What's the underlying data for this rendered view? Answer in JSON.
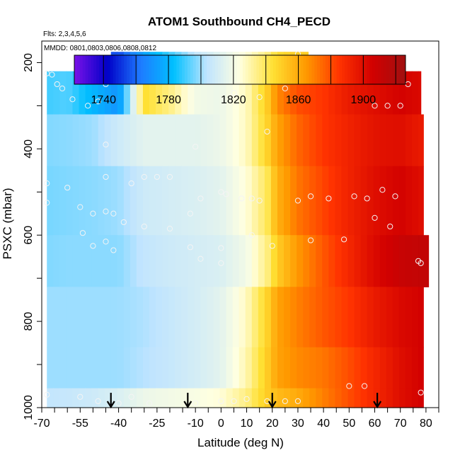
{
  "chart_data": {
    "type": "heatmap",
    "title": "ATOM1 Southbound CH4_PECD",
    "flights_note": "Flts: 2,3,4,5,6",
    "dates_note": "MMDD: 0801,0803,0806,0808,0812",
    "xlabel": "Latitude (deg N)",
    "ylabel": "PSXC (mbar)",
    "xlim": [
      -70,
      85
    ],
    "ylim": [
      1000,
      150
    ],
    "x_ticks": [
      -70,
      -55,
      -40,
      -25,
      -10,
      0,
      10,
      20,
      30,
      40,
      50,
      60,
      70,
      80
    ],
    "y_ticks": [
      200,
      400,
      600,
      800,
      1000
    ],
    "colorbar": {
      "range": [
        1722,
        1926
      ],
      "tick_values": [
        1740,
        1780,
        1820,
        1860,
        1900
      ],
      "tick_labels": [
        "1740",
        "1780",
        "1820",
        "1860",
        "1900"
      ],
      "boundaries": [
        1740,
        1760,
        1780,
        1800,
        1820,
        1840,
        1860,
        1880,
        1900,
        1920
      ],
      "colors": [
        "#7a12e8",
        "#0000c8",
        "#1e7bff",
        "#00c0ff",
        "#bfe4ff",
        "#ffffe0",
        "#ffe033",
        "#ff9900",
        "#ff3300",
        "#d20000",
        "#a01010"
      ]
    },
    "field": {
      "lat_nodes": [
        -68,
        -60,
        -50,
        -40,
        -30,
        -20,
        -10,
        0,
        10,
        18,
        22,
        30,
        40,
        50,
        60,
        70,
        78
      ],
      "rows": [
        {
          "p_top": 175,
          "p_bot": 220,
          "lat_min": -43,
          "lat_max": 34,
          "values": [
            1760,
            1760,
            1760,
            1755,
            1775,
            1790,
            1805,
            1815,
            1825,
            1835,
            1845,
            1850,
            1850,
            1850,
            1850,
            1850,
            1850
          ]
        },
        {
          "p_top": 220,
          "p_bot": 320,
          "lat_min": -68,
          "lat_max": 78,
          "values": [
            1790,
            1792,
            1780,
            1770,
            1845,
            1835,
            1820,
            1818,
            1828,
            1850,
            1868,
            1880,
            1885,
            1895,
            1900,
            1905,
            1902
          ]
        },
        {
          "p_top": 320,
          "p_bot": 440,
          "lat_min": -68,
          "lat_max": 79,
          "values": [
            1797,
            1798,
            1800,
            1808,
            1815,
            1815,
            1815,
            1818,
            1828,
            1848,
            1862,
            1875,
            1885,
            1892,
            1898,
            1900,
            1895
          ]
        },
        {
          "p_top": 440,
          "p_bot": 600,
          "lat_min": -68,
          "lat_max": 79,
          "values": [
            1796,
            1797,
            1798,
            1800,
            1808,
            1810,
            1812,
            1815,
            1825,
            1840,
            1858,
            1872,
            1882,
            1892,
            1900,
            1905,
            1900
          ]
        },
        {
          "p_top": 600,
          "p_bot": 720,
          "lat_min": -68,
          "lat_max": 81,
          "values": [
            1797,
            1798,
            1798,
            1798,
            1805,
            1808,
            1810,
            1812,
            1820,
            1835,
            1850,
            1865,
            1878,
            1890,
            1902,
            1910,
            1912
          ]
        },
        {
          "p_top": 720,
          "p_bot": 860,
          "lat_min": -68,
          "lat_max": 79,
          "values": [
            1800,
            1800,
            1800,
            1800,
            1802,
            1806,
            1810,
            1815,
            1828,
            1848,
            1862,
            1870,
            1878,
            1885,
            1895,
            1902,
            1905
          ]
        },
        {
          "p_top": 860,
          "p_bot": 955,
          "lat_min": -68,
          "lat_max": 79,
          "values": [
            1800,
            1800,
            1800,
            1800,
            1803,
            1806,
            1810,
            1815,
            1830,
            1850,
            1862,
            1868,
            1872,
            1880,
            1890,
            1900,
            1905
          ]
        },
        {
          "p_top": 955,
          "p_bot": 1000,
          "lat_min": -68,
          "lat_max": 79,
          "values": [
            1805,
            1806,
            1808,
            1812,
            1818,
            1820,
            1822,
            1825,
            1835,
            1850,
            1855,
            1860,
            1870,
            1880,
            1890,
            1900,
            1905
          ]
        }
      ]
    },
    "sample_points": [
      {
        "x": -68,
        "y": 225
      },
      {
        "x": -66,
        "y": 228
      },
      {
        "x": -64,
        "y": 250
      },
      {
        "x": -62,
        "y": 260
      },
      {
        "x": -58,
        "y": 285
      },
      {
        "x": -52,
        "y": 300
      },
      {
        "x": -48,
        "y": 290
      },
      {
        "x": -45,
        "y": 250
      },
      {
        "x": -43,
        "y": 200
      },
      {
        "x": -40,
        "y": 230
      },
      {
        "x": -30,
        "y": 240
      },
      {
        "x": -20,
        "y": 230
      },
      {
        "x": -10,
        "y": 220
      },
      {
        "x": 0,
        "y": 240
      },
      {
        "x": 5,
        "y": 270
      },
      {
        "x": 15,
        "y": 280
      },
      {
        "x": 25,
        "y": 260
      },
      {
        "x": 30,
        "y": 180
      },
      {
        "x": 40,
        "y": 235
      },
      {
        "x": 48,
        "y": 230
      },
      {
        "x": 55,
        "y": 240
      },
      {
        "x": 60,
        "y": 300
      },
      {
        "x": 65,
        "y": 300
      },
      {
        "x": 70,
        "y": 300
      },
      {
        "x": 73,
        "y": 250
      },
      {
        "x": -45,
        "y": 390
      },
      {
        "x": -10,
        "y": 395
      },
      {
        "x": 18,
        "y": 360
      },
      {
        "x": 30,
        "y": 520
      },
      {
        "x": -68,
        "y": 480
      },
      {
        "x": -60,
        "y": 490
      },
      {
        "x": -45,
        "y": 465
      },
      {
        "x": -35,
        "y": 480
      },
      {
        "x": -30,
        "y": 465
      },
      {
        "x": -25,
        "y": 465
      },
      {
        "x": -20,
        "y": 465
      },
      {
        "x": -12,
        "y": 550
      },
      {
        "x": -8,
        "y": 515
      },
      {
        "x": 0,
        "y": 500
      },
      {
        "x": 2,
        "y": 505
      },
      {
        "x": 8,
        "y": 515
      },
      {
        "x": 12,
        "y": 515
      },
      {
        "x": 15,
        "y": 520
      },
      {
        "x": 35,
        "y": 510
      },
      {
        "x": 42,
        "y": 515
      },
      {
        "x": 52,
        "y": 510
      },
      {
        "x": 57,
        "y": 515
      },
      {
        "x": 63,
        "y": 495
      },
      {
        "x": 68,
        "y": 510
      },
      {
        "x": -68,
        "y": 525
      },
      {
        "x": -55,
        "y": 535
      },
      {
        "x": -50,
        "y": 550
      },
      {
        "x": -45,
        "y": 545
      },
      {
        "x": -42,
        "y": 550
      },
      {
        "x": -38,
        "y": 570
      },
      {
        "x": -30,
        "y": 580
      },
      {
        "x": -20,
        "y": 585
      },
      {
        "x": -54,
        "y": 595
      },
      {
        "x": -50,
        "y": 625
      },
      {
        "x": -45,
        "y": 615
      },
      {
        "x": -42,
        "y": 635
      },
      {
        "x": -12,
        "y": 628
      },
      {
        "x": 0,
        "y": 630
      },
      {
        "x": 12,
        "y": 600
      },
      {
        "x": 20,
        "y": 625
      },
      {
        "x": 35,
        "y": 612
      },
      {
        "x": 48,
        "y": 610
      },
      {
        "x": 60,
        "y": 560
      },
      {
        "x": 66,
        "y": 580
      },
      {
        "x": 77,
        "y": 660
      },
      {
        "x": 78,
        "y": 665
      },
      {
        "x": -8,
        "y": 655
      },
      {
        "x": 0,
        "y": 665
      },
      {
        "x": -68,
        "y": 970
      },
      {
        "x": -55,
        "y": 975
      },
      {
        "x": -48,
        "y": 985
      },
      {
        "x": -40,
        "y": 990
      },
      {
        "x": -35,
        "y": 975
      },
      {
        "x": -28,
        "y": 990
      },
      {
        "x": -10,
        "y": 990
      },
      {
        "x": 0,
        "y": 985
      },
      {
        "x": 5,
        "y": 985
      },
      {
        "x": 10,
        "y": 980
      },
      {
        "x": 18,
        "y": 985
      },
      {
        "x": 25,
        "y": 985
      },
      {
        "x": 30,
        "y": 985
      },
      {
        "x": 50,
        "y": 950
      },
      {
        "x": 56,
        "y": 950
      },
      {
        "x": 78,
        "y": 965
      }
    ],
    "arrows": [
      -43,
      -13,
      20,
      61
    ]
  }
}
